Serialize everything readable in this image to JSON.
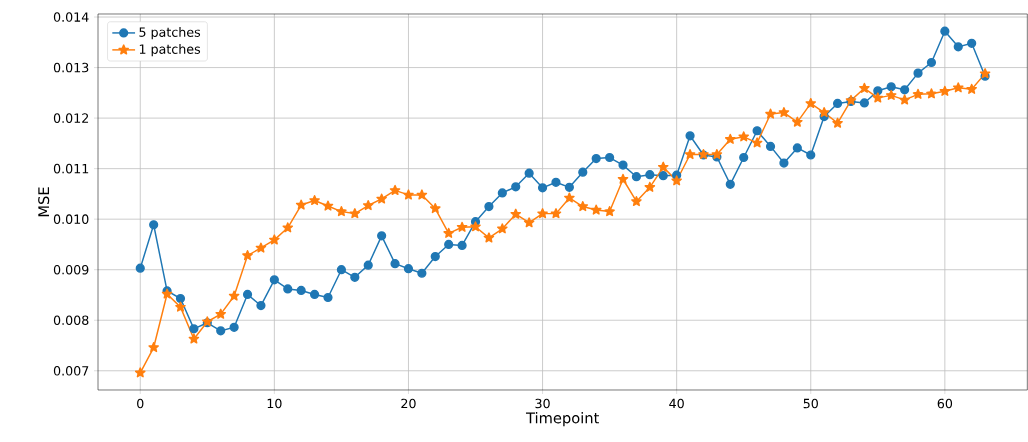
{
  "chart_data": {
    "type": "line",
    "xlabel": "Timepoint",
    "ylabel": "MSE",
    "x": [
      0,
      1,
      2,
      3,
      4,
      5,
      6,
      7,
      8,
      9,
      10,
      11,
      12,
      13,
      14,
      15,
      16,
      17,
      18,
      19,
      20,
      21,
      22,
      23,
      24,
      25,
      26,
      27,
      28,
      29,
      30,
      31,
      32,
      33,
      34,
      35,
      36,
      37,
      38,
      39,
      40,
      41,
      42,
      43,
      44,
      45,
      46,
      47,
      48,
      49,
      50,
      51,
      52,
      53,
      54,
      55,
      56,
      57,
      58,
      59,
      60,
      61,
      62,
      63
    ],
    "series": [
      {
        "name": "5 patches",
        "color": "#1f77b4",
        "marker": "circle",
        "values": [
          0.00903,
          0.00989,
          0.00858,
          0.00843,
          0.00783,
          0.00795,
          0.00779,
          0.00786,
          0.00851,
          0.00829,
          0.0088,
          0.00862,
          0.00859,
          0.00851,
          0.00845,
          0.009,
          0.00885,
          0.00909,
          0.00967,
          0.00912,
          0.00902,
          0.00893,
          0.00926,
          0.0095,
          0.00948,
          0.00995,
          0.01025,
          0.01052,
          0.01064,
          0.01091,
          0.01062,
          0.01073,
          0.01063,
          0.01093,
          0.0112,
          0.01122,
          0.01107,
          0.01084,
          0.01088,
          0.01086,
          0.01087,
          0.01165,
          0.01127,
          0.01123,
          0.01069,
          0.01122,
          0.01175,
          0.01144,
          0.01111,
          0.01141,
          0.01127,
          0.01203,
          0.01229,
          0.01233,
          0.0123,
          0.01254,
          0.01262,
          0.01256,
          0.01289,
          0.0131,
          0.01372,
          0.01341,
          0.01348,
          0.01283
        ]
      },
      {
        "name": "1 patches",
        "color": "#ff7f0e",
        "marker": "star",
        "values": [
          0.00696,
          0.00746,
          0.00852,
          0.00826,
          0.00763,
          0.00797,
          0.00812,
          0.00848,
          0.00928,
          0.00943,
          0.00959,
          0.00983,
          0.01028,
          0.01037,
          0.01026,
          0.01015,
          0.01011,
          0.01027,
          0.0104,
          0.01057,
          0.01048,
          0.01048,
          0.01021,
          0.00972,
          0.00984,
          0.00985,
          0.00963,
          0.00981,
          0.0101,
          0.00993,
          0.01011,
          0.01011,
          0.01042,
          0.01025,
          0.01018,
          0.01015,
          0.01079,
          0.01035,
          0.01063,
          0.01103,
          0.01076,
          0.01128,
          0.01128,
          0.01128,
          0.01158,
          0.01163,
          0.01151,
          0.01208,
          0.01211,
          0.01192,
          0.01229,
          0.01211,
          0.0119,
          0.01235,
          0.01259,
          0.0124,
          0.01245,
          0.01236,
          0.01247,
          0.01248,
          0.01253,
          0.0126,
          0.01257,
          0.01288
        ]
      }
    ],
    "xlim": [
      -3.15,
      66.15
    ],
    "ylim": [
      0.00662,
      0.01406
    ],
    "xticks": [
      0,
      10,
      20,
      30,
      40,
      50,
      60
    ],
    "yticks": [
      {
        "value": 0.007,
        "label": "0.007"
      },
      {
        "value": 0.008,
        "label": "0.008"
      },
      {
        "value": 0.009,
        "label": "0.009"
      },
      {
        "value": 0.01,
        "label": "0.010"
      },
      {
        "value": 0.011,
        "label": "0.011"
      },
      {
        "value": 0.012,
        "label": "0.012"
      },
      {
        "value": 0.013,
        "label": "0.013"
      },
      {
        "value": 0.014,
        "label": "0.014"
      }
    ],
    "grid": true,
    "legend": "top left",
    "line_style": "solid"
  }
}
